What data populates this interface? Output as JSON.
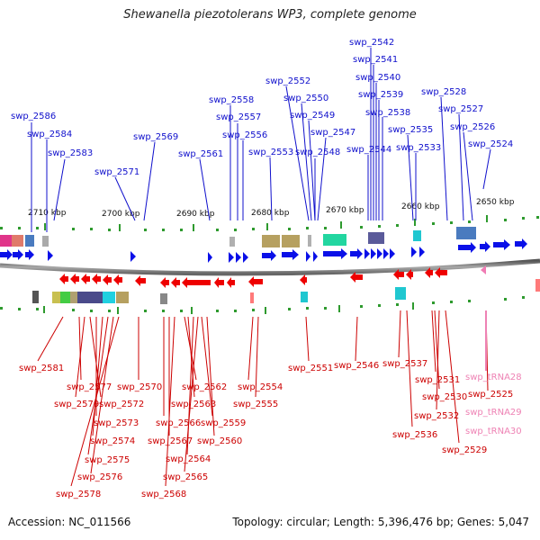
{
  "title": "Shewanella piezotolerans WP3, complete genome",
  "accession": "Accession: NC_011566",
  "topology": "Topology: circular; Length: 5,396,476 bp; Genes: 5,047",
  "ticks": [
    "2710 kbp",
    "2700 kbp",
    "2690 kbp",
    "2680 kbp",
    "2670 kbp",
    "2660 kbp",
    "2650 kbp"
  ],
  "top_genes": [
    "swp_2586",
    "swp_2584",
    "swp_2583",
    "swp_2571",
    "swp_2569",
    "swp_2561",
    "swp_2558",
    "swp_2557",
    "swp_2556",
    "swp_2553",
    "swp_2552",
    "swp_2550",
    "swp_2549",
    "swp_2548",
    "swp_2547",
    "swp_2544",
    "swp_2542",
    "swp_2541",
    "swp_2540",
    "swp_2539",
    "swp_2538",
    "swp_2535",
    "swp_2533",
    "swp_2528",
    "swp_2527",
    "swp_2526",
    "swp_2524"
  ],
  "bottom_genes": [
    "swp_2581",
    "swp_2577",
    "swp_2579",
    "swp_2572",
    "swp_2570",
    "swp_2573",
    "swp_2574",
    "swp_2575",
    "swp_2576",
    "swp_2578",
    "swp_2566",
    "swp_2567",
    "swp_2568",
    "swp_2562",
    "swp_2563",
    "swp_2564",
    "swp_2565",
    "swp_2559",
    "swp_2560",
    "swp_2554",
    "swp_2555",
    "swp_2551",
    "swp_2546",
    "swp_2537",
    "swp_2531",
    "swp_2530",
    "swp_2532",
    "swp_2536",
    "swp_2529",
    "swp_2525"
  ],
  "trna_genes": [
    "swp_tRNA28",
    "swp_tRNA29",
    "swp_tRNA30"
  ],
  "colors": {
    "forward": "#0a10e8",
    "reverse": "#ee0000",
    "backbone": "#777777",
    "trna": "#f07cb4"
  }
}
